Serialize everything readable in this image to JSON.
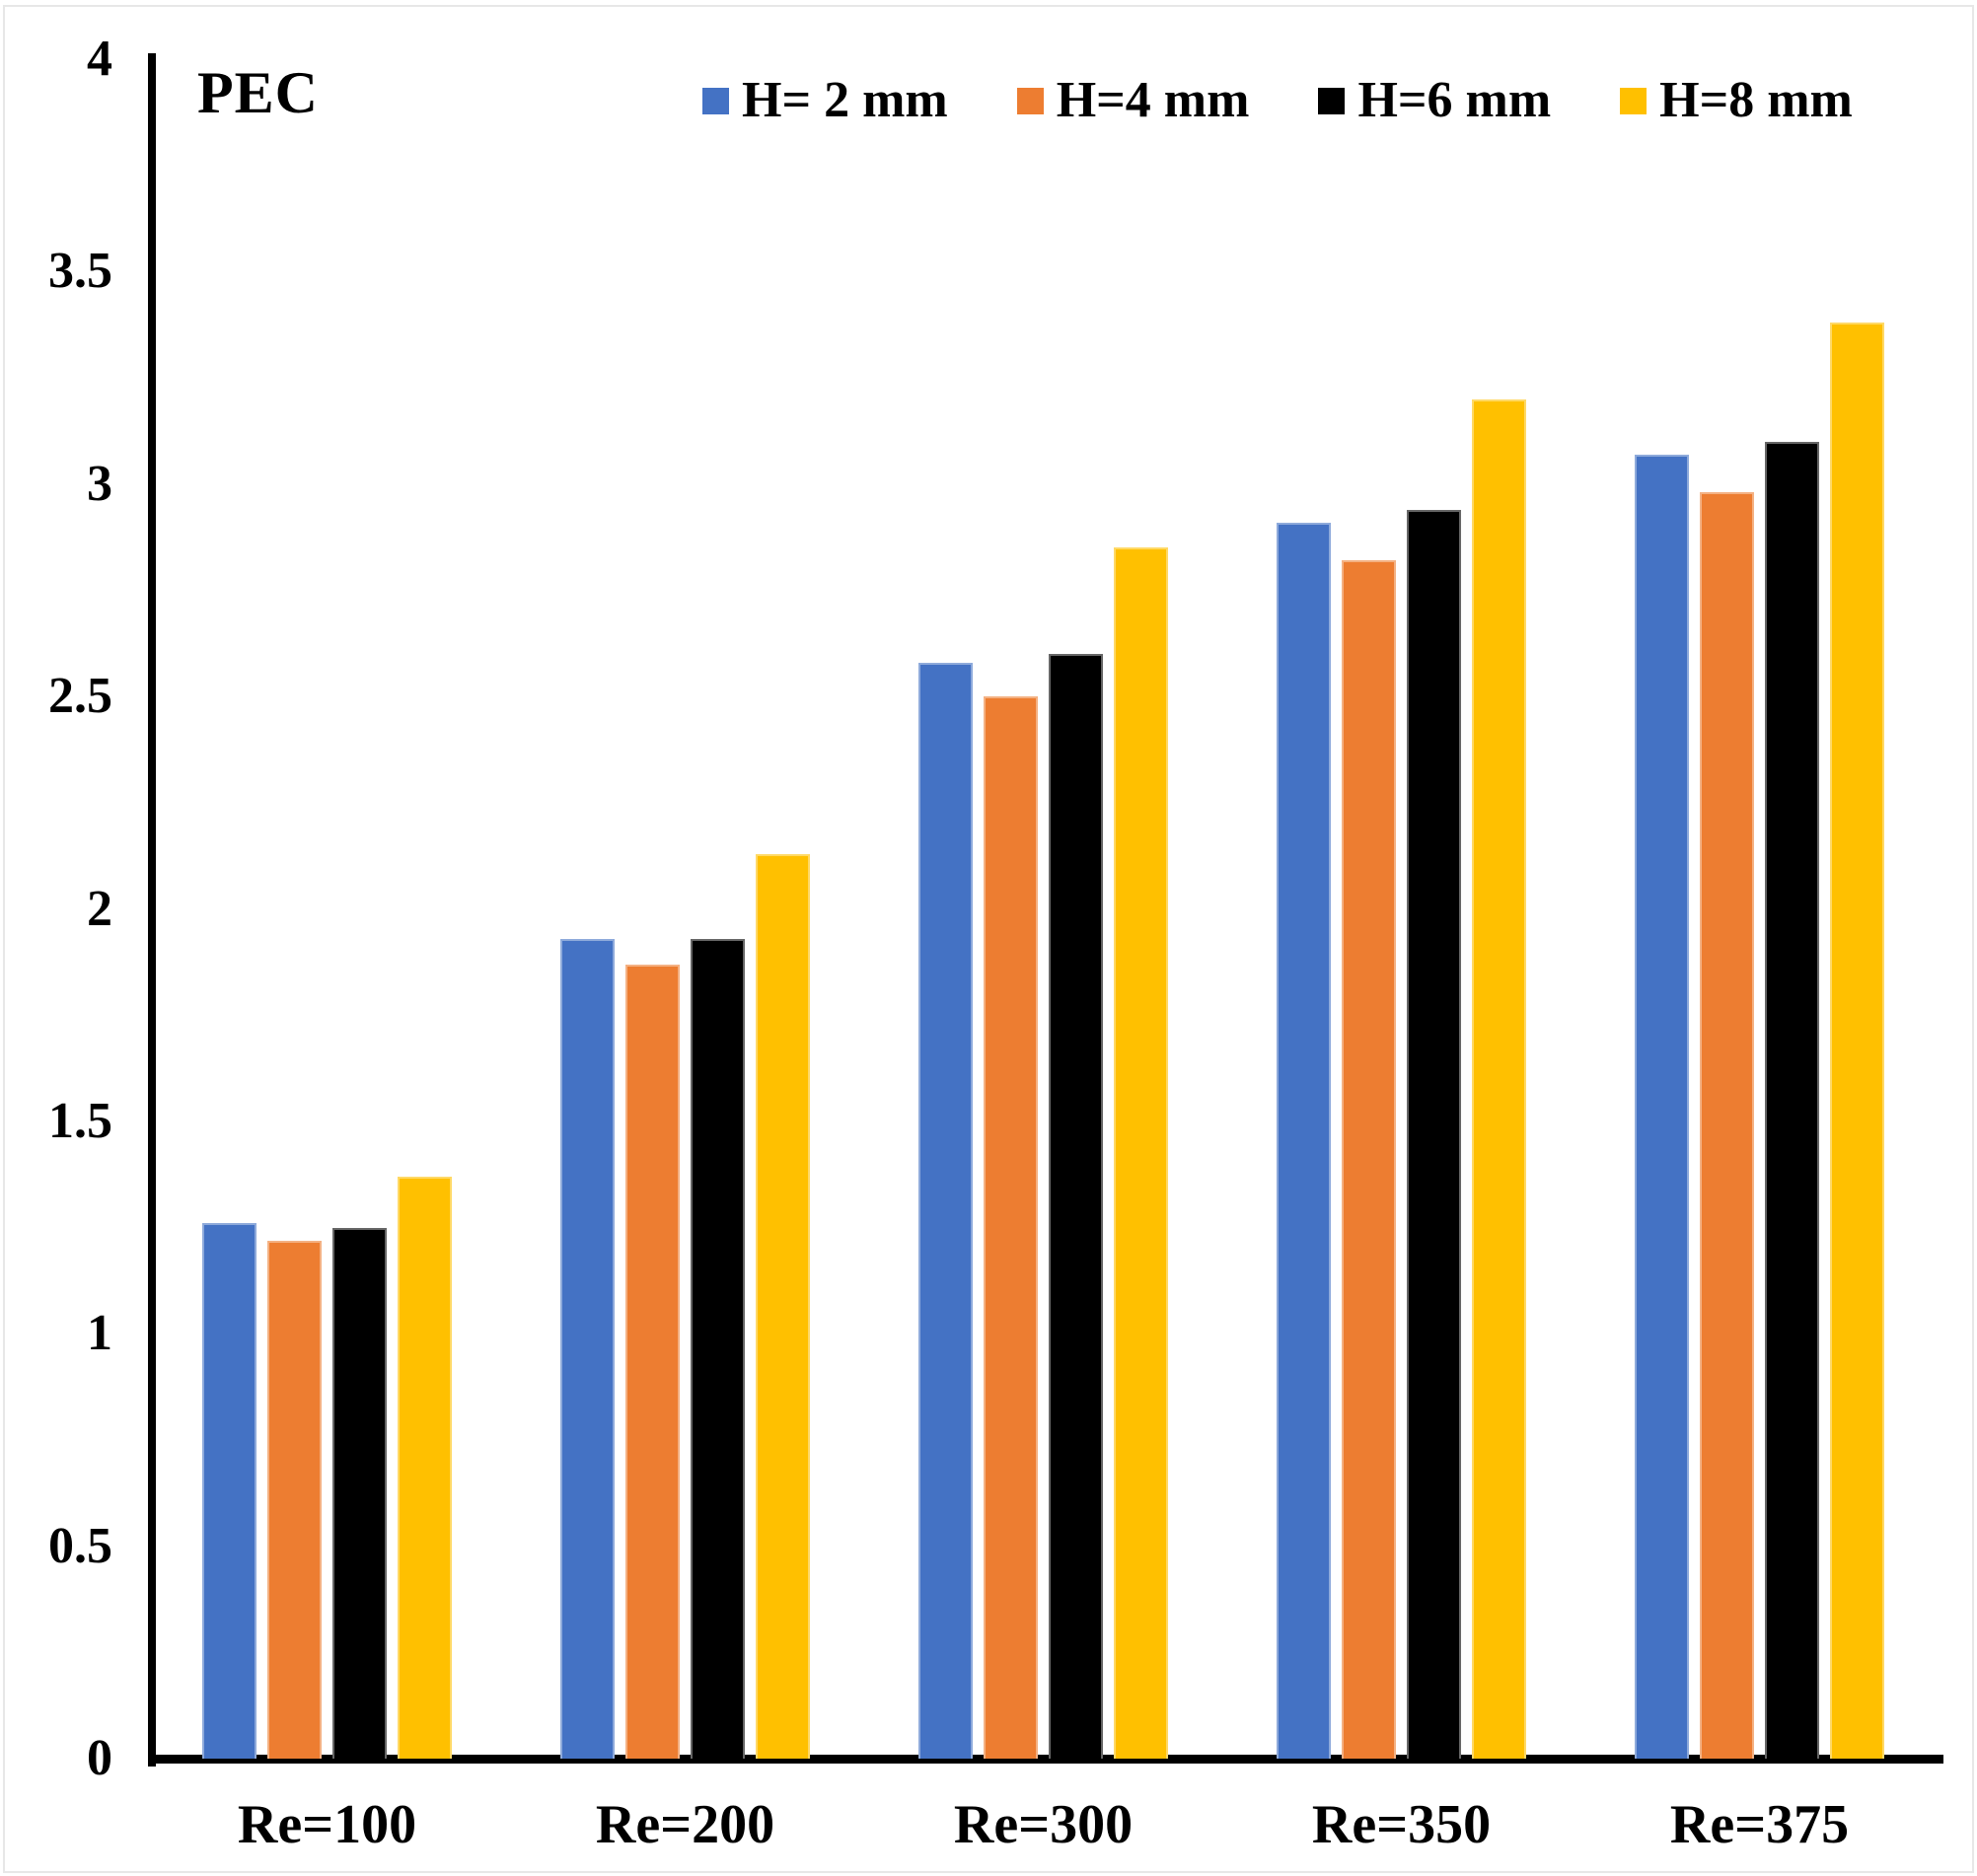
{
  "chart_data": {
    "type": "bar",
    "title": "PEC",
    "categories": [
      "Re=100",
      "Re=200",
      "Re=300",
      "Re=350",
      "Re=375"
    ],
    "series": [
      {
        "name": "H= 2 mm",
        "color": "#4472C4",
        "values": [
          1.26,
          1.93,
          2.58,
          2.91,
          3.07
        ]
      },
      {
        "name": "H=4 mm",
        "color": "#ED7D31",
        "values": [
          1.22,
          1.87,
          2.5,
          2.82,
          2.98
        ]
      },
      {
        "name": "H=6 mm",
        "color": "#000000",
        "values": [
          1.25,
          1.93,
          2.6,
          2.94,
          3.1
        ]
      },
      {
        "name": "H=8 mm",
        "color": "#FFC000",
        "values": [
          1.37,
          2.13,
          2.85,
          3.2,
          3.38
        ]
      }
    ],
    "xlabel": "",
    "ylabel": "",
    "ylim": [
      0,
      4
    ],
    "ytick_step": 0.5,
    "yticks": [
      {
        "value": 0,
        "label": "0"
      },
      {
        "value": 0.5,
        "label": "0.5"
      },
      {
        "value": 1,
        "label": "1"
      },
      {
        "value": 1.5,
        "label": "1.5"
      },
      {
        "value": 2,
        "label": "2"
      },
      {
        "value": 2.5,
        "label": "2.5"
      },
      {
        "value": 3,
        "label": "3"
      },
      {
        "value": 3.5,
        "label": "3.5"
      },
      {
        "value": 4,
        "label": "4"
      }
    ],
    "grid": false,
    "legend_position": "top",
    "axis_color": "#000000",
    "background_color": "#ffffff"
  }
}
